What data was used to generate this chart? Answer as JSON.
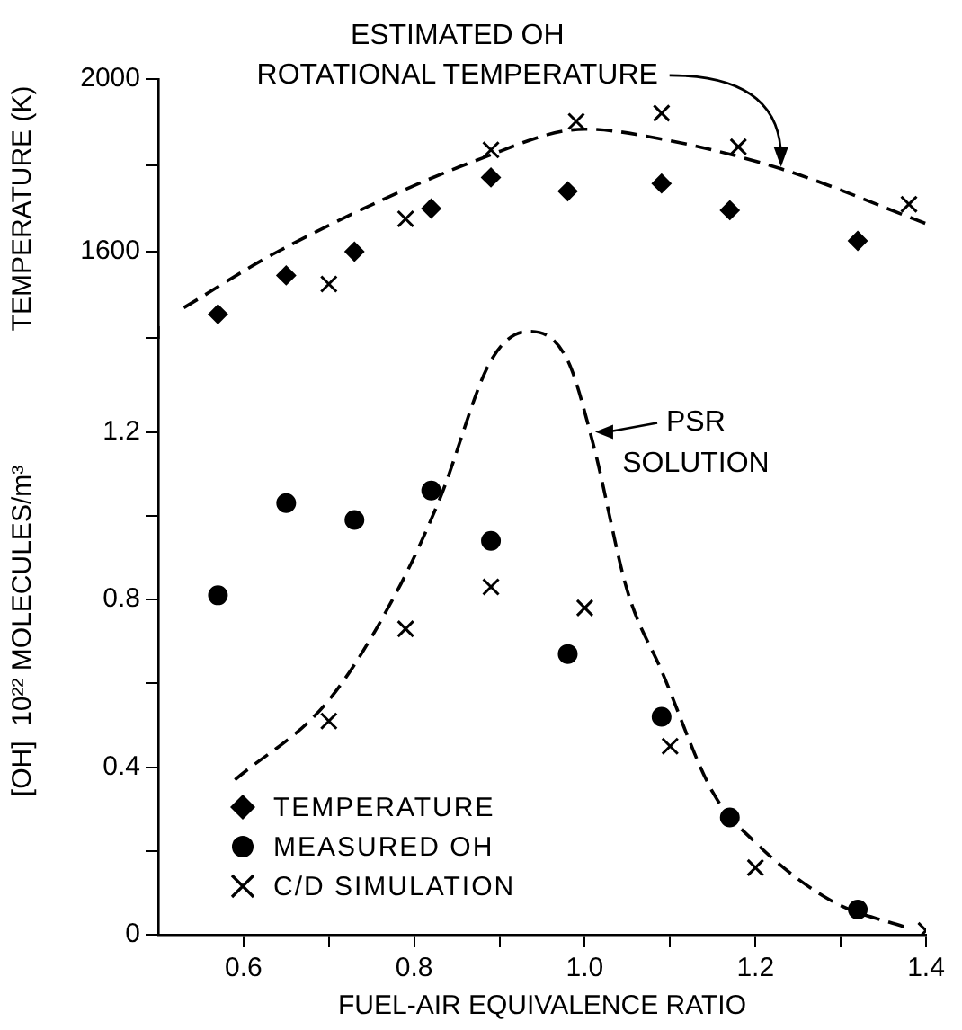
{
  "chart_data": [
    {
      "type": "scatter",
      "ylabel": "TEMPERATURE (K)",
      "xlim": [
        0.5,
        1.4
      ],
      "ylim": [
        1400,
        2000
      ],
      "yticks": [
        {
          "value": 1400,
          "label": null
        },
        1600,
        {
          "value": 1800,
          "label": null
        },
        2000
      ],
      "tick_labels": "y",
      "annotations": [
        {
          "text": "ESTIMATED OH\nROTATIONAL TEMPERATURE",
          "x": 1.23,
          "y": 1792
        }
      ],
      "series": [
        {
          "name": "TEMPERATURE",
          "color": "#000000",
          "marker": "diamond",
          "x": [
            0.57,
            0.65,
            0.73,
            0.82,
            0.89,
            0.98,
            1.09,
            1.17,
            1.32
          ],
          "values": [
            1455,
            1545,
            1600,
            1700,
            1772,
            1740,
            1758,
            1696,
            1625
          ]
        },
        {
          "color": "#000000",
          "marker": "cross",
          "x": [
            0.7,
            0.79,
            0.89,
            0.99,
            1.09,
            1.18,
            1.38
          ],
          "values": [
            1525,
            1676,
            1836,
            1902,
            1921,
            1843,
            1710
          ]
        },
        {
          "type": "line",
          "color": "#000000",
          "marker": "none",
          "line_style": "dashed",
          "x": [
            0.53,
            0.64,
            0.88,
            1.0,
            1.09,
            1.23,
            1.4
          ],
          "values": [
            1470,
            1600,
            1817,
            1884,
            1861,
            1792,
            1665
          ]
        }
      ]
    },
    {
      "type": "scatter",
      "xlabel": "FUEL-AIR EQUIVALENCE RATIO",
      "ylabel": "[OH]  10²² MOLECULES/m³",
      "xlim": [
        0.5,
        1.4
      ],
      "ylim": [
        0,
        1.45
      ],
      "xticks": [
        0.6,
        {
          "value": 0.7,
          "label": null
        },
        0.8,
        {
          "value": 0.9,
          "label": null
        },
        {
          "value": 1,
          "label": "1.0"
        },
        {
          "value": 1.1,
          "label": null
        },
        1.2,
        {
          "value": 1.3,
          "label": null
        },
        1.4
      ],
      "yticks": [
        0,
        {
          "value": 0.2,
          "label": null
        },
        0.4,
        {
          "value": 0.6,
          "label": null
        },
        0.8,
        {
          "value": 1,
          "label": null
        },
        1.2
      ],
      "legend": "bottom left",
      "annotations": [
        {
          "text": "PSR\nSOLUTION",
          "x": 1.01,
          "y": 1.2
        }
      ],
      "series": [
        {
          "name": "MEASURED OH",
          "color": "#000000",
          "marker": "circle",
          "x": [
            0.57,
            0.65,
            0.73,
            0.82,
            0.89,
            0.98,
            1.09,
            1.17,
            1.32
          ],
          "values": [
            0.81,
            1.03,
            0.99,
            1.06,
            0.94,
            0.67,
            0.52,
            0.28,
            0.06
          ]
        },
        {
          "name": "C/D SIMULATION",
          "color": "#000000",
          "marker": "cross",
          "x": [
            0.7,
            0.79,
            0.89,
            1.0,
            1.1,
            1.2,
            1.4
          ],
          "values": [
            0.51,
            0.73,
            0.83,
            0.78,
            0.45,
            0.16,
            0.01
          ]
        },
        {
          "type": "line",
          "color": "#000000",
          "marker": "none",
          "line_style": "dashed",
          "x": [
            0.59,
            0.7,
            0.78,
            0.83,
            0.89,
            0.935,
            0.98,
            1.01,
            1.05,
            1.09,
            1.15,
            1.2,
            1.29,
            1.38
          ],
          "values": [
            0.37,
            0.56,
            0.82,
            1.04,
            1.37,
            1.44,
            1.37,
            1.17,
            0.82,
            0.63,
            0.34,
            0.22,
            0.08,
            0.015
          ]
        }
      ]
    }
  ]
}
